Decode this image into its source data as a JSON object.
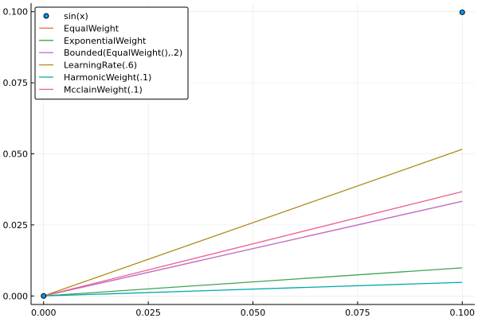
{
  "chart_data": {
    "type": "line",
    "title": "",
    "xlabel": "",
    "ylabel": "",
    "xlim": [
      -0.003,
      0.103
    ],
    "ylim": [
      -0.003,
      0.103
    ],
    "x_ticks": [
      0.0,
      0.025,
      0.05,
      0.075,
      0.1
    ],
    "x_tick_labels": [
      "0.000",
      "0.025",
      "0.050",
      "0.075",
      "0.100"
    ],
    "y_ticks": [
      0.0,
      0.025,
      0.05,
      0.075,
      0.1
    ],
    "y_tick_labels": [
      "0.000",
      "0.025",
      "0.050",
      "0.075",
      "0.100"
    ],
    "grid": true,
    "legend_position": "top-left",
    "scatter": {
      "name": "sin(x)",
      "color": "#009AFA",
      "x": [
        0.0,
        0.1
      ],
      "y": [
        0.0,
        0.0998
      ]
    },
    "series": [
      {
        "name": "EqualWeight",
        "color": "#E36F47",
        "x": [
          0.0,
          0.1
        ],
        "y": [
          0.0,
          0.0333
        ]
      },
      {
        "name": "ExponentialWeight",
        "color": "#3EA44E",
        "x": [
          0.0,
          0.1
        ],
        "y": [
          0.0,
          0.0099
        ]
      },
      {
        "name": "Bounded(EqualWeight(),.2)",
        "color": "#C271D2",
        "x": [
          0.0,
          0.1
        ],
        "y": [
          0.0,
          0.0333
        ]
      },
      {
        "name": "LearningRate(.6)",
        "color": "#AC8D18",
        "x": [
          0.0,
          0.1
        ],
        "y": [
          0.0,
          0.0516
        ]
      },
      {
        "name": "HarmonicWeight(.1)",
        "color": "#00A9AD",
        "x": [
          0.0,
          0.1
        ],
        "y": [
          0.0,
          0.0048
        ]
      },
      {
        "name": "McclainWeight(.1)",
        "color": "#ED5E93",
        "x": [
          0.0,
          0.1
        ],
        "y": [
          0.0,
          0.0367
        ]
      }
    ]
  }
}
